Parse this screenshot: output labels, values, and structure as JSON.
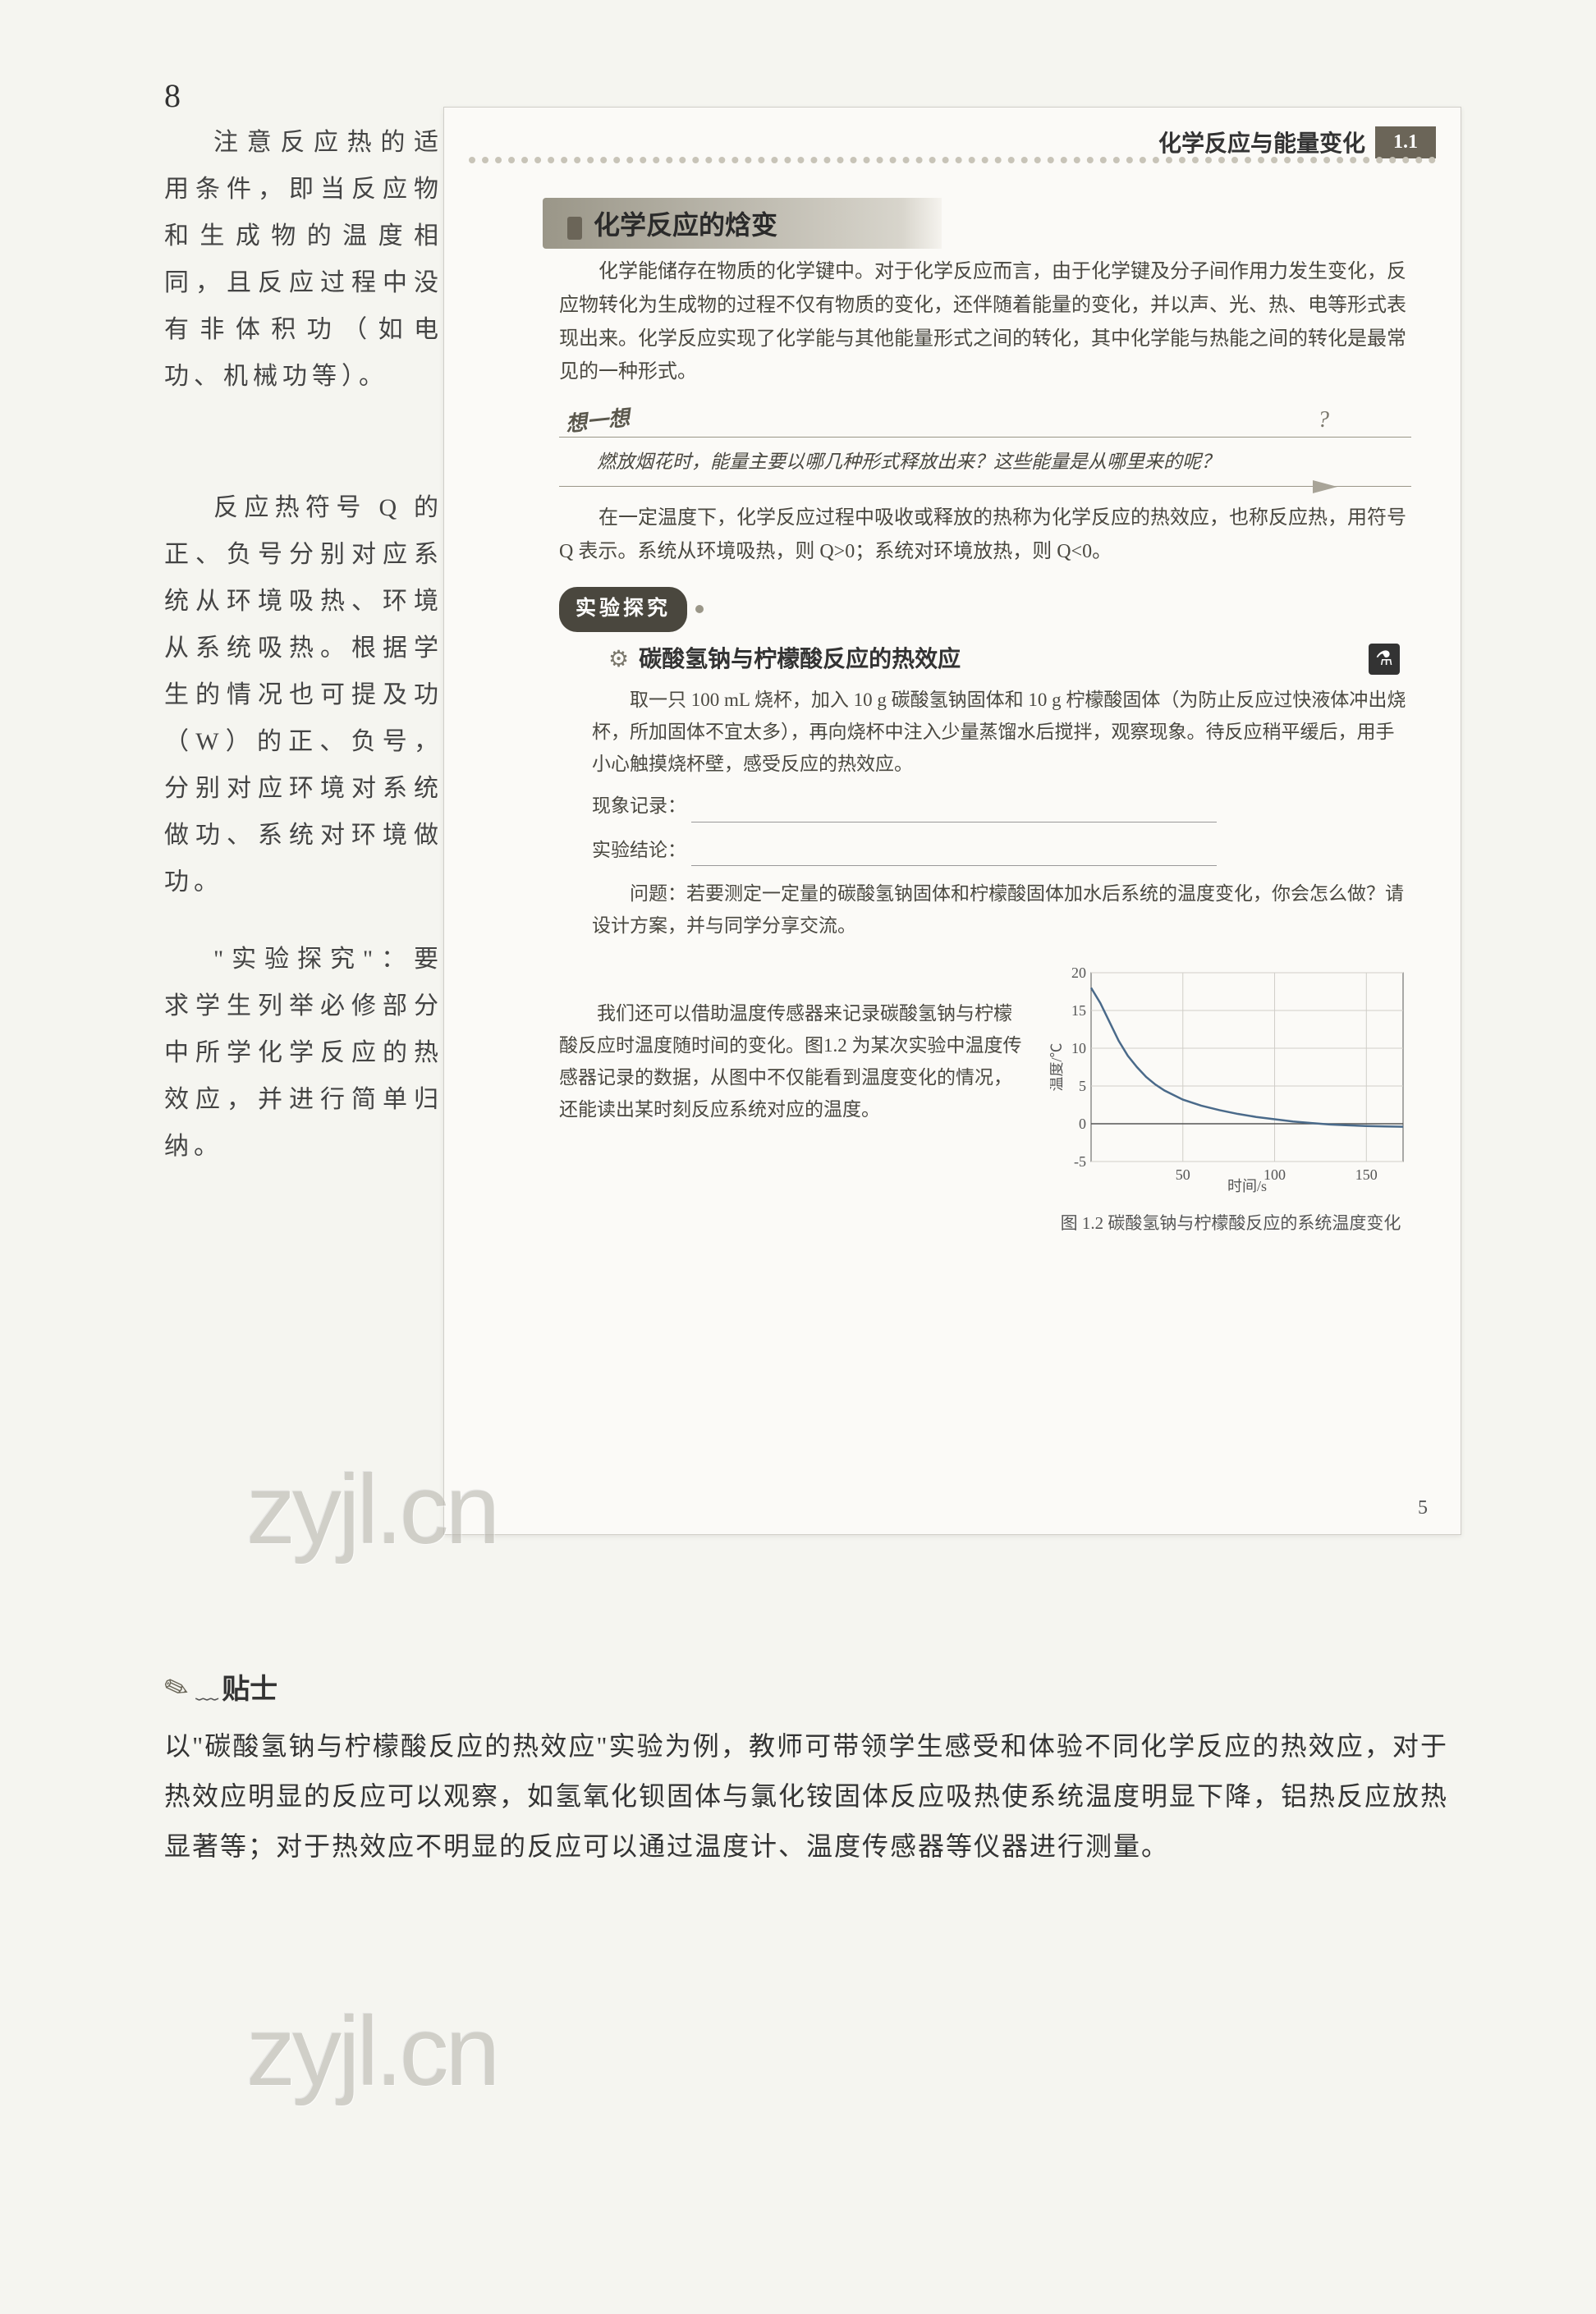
{
  "header": {
    "chapter_title": "化学反应与能量变化",
    "chapter_badge": "1.1"
  },
  "section": {
    "title": "化学反应的焓变"
  },
  "intro": {
    "p1": "化学能储存在物质的化学键中。对于化学反应而言，由于化学键及分子间作用力发生变化，反应物转化为生成物的过程不仅有物质的变化，还伴随着能量的变化，并以声、光、热、电等形式表现出来。化学反应实现了化学能与其他能量形式之间的转化，其中化学能与热能之间的转化是最常见的一种形式。"
  },
  "think": {
    "label": "想一想",
    "q_mark": "?",
    "text": "燃放烟花时，能量主要以哪几种形式释放出来？这些能量是从哪里来的呢？"
  },
  "heat": {
    "p1": "在一定温度下，化学反应过程中吸收或释放的热称为化学反应的热效应，也称反应热，用符号 Q 表示。系统从环境吸热，则 Q>0；系统对环境放热，则 Q<0。"
  },
  "experiment": {
    "pill": "实验探究",
    "title": "碳酸氢钠与柠檬酸反应的热效应",
    "p1": "取一只 100 mL 烧杯，加入 10 g 碳酸氢钠固体和 10 g 柠檬酸固体（为防止反应过快液体冲出烧杯，所加固体不宜太多），再向烧杯中注入少量蒸馏水后搅拌，观察现象。待反应稍平缓后，用手小心触摸烧杯壁，感受反应的热效应。",
    "record_label": "现象记录：",
    "conclusion_label": "实验结论：",
    "p2": "问题：若要测定一定量的碳酸氢钠固体和柠檬酸固体加水后系统的温度变化，你会怎么做？请设计方案，并与同学分享交流。"
  },
  "chart_para": {
    "text": "我们还可以借助温度传感器来记录碳酸氢钠与柠檬酸反应时温度随时间的变化。图1.2 为某次实验中温度传感器记录的数据，从图中不仅能看到温度变化的情况，还能读出某时刻反应系统对应的温度。"
  },
  "chart": {
    "type": "line",
    "x_label": "时间/s",
    "y_label": "温度/℃",
    "xlim": [
      0,
      170
    ],
    "ylim": [
      -5,
      20
    ],
    "xticks": [
      50,
      100,
      150
    ],
    "yticks": [
      -5,
      0,
      5,
      10,
      15,
      20
    ],
    "line_color": "#4a6a8a",
    "grid_color": "#d0cec8",
    "axis_color": "#555555",
    "background": "#fbfaf7",
    "font_size": 18,
    "points": [
      [
        0,
        18
      ],
      [
        5,
        16
      ],
      [
        10,
        13.5
      ],
      [
        15,
        11
      ],
      [
        20,
        9
      ],
      [
        25,
        7.5
      ],
      [
        30,
        6.2
      ],
      [
        35,
        5.2
      ],
      [
        40,
        4.4
      ],
      [
        50,
        3.2
      ],
      [
        60,
        2.4
      ],
      [
        70,
        1.8
      ],
      [
        80,
        1.3
      ],
      [
        90,
        0.9
      ],
      [
        100,
        0.6
      ],
      [
        110,
        0.3
      ],
      [
        120,
        0.1
      ],
      [
        130,
        -0.1
      ],
      [
        140,
        -0.2
      ],
      [
        150,
        -0.3
      ],
      [
        160,
        -0.35
      ],
      [
        170,
        -0.4
      ]
    ],
    "caption": "图 1.2  碳酸氢钠与柠檬酸反应的系统温度变化"
  },
  "scan_page_number": "5",
  "margin_notes": {
    "n1": "注意反应热的适用条件，即当反应物和生成物的温度相同，且反应过程中没有非体积功（如电功、机械功等）。",
    "n2": "反应热符号 Q 的正、负号分别对应系统从环境吸热、环境从系统吸热。根据学生的情况也可提及功（W）的正、负号，分别对应环境对系统做功、系统对环境做功。",
    "n3": "\"实验探究\"：要求学生列举必修部分中所学化学反应的热效应，并进行简单归纳。"
  },
  "tip": {
    "label": "贴士",
    "body": "以\"碳酸氢钠与柠檬酸反应的热效应\"实验为例，教师可带领学生感受和体验不同化学反应的热效应，对于热效应明显的反应可以观察，如氢氧化钡固体与氯化铵固体反应吸热使系统温度明显下降，铝热反应放热显著等；对于热效应不明显的反应可以通过温度计、温度传感器等仪器进行测量。"
  },
  "watermark_text": "zyjl.cn",
  "outer_page_number": "8"
}
